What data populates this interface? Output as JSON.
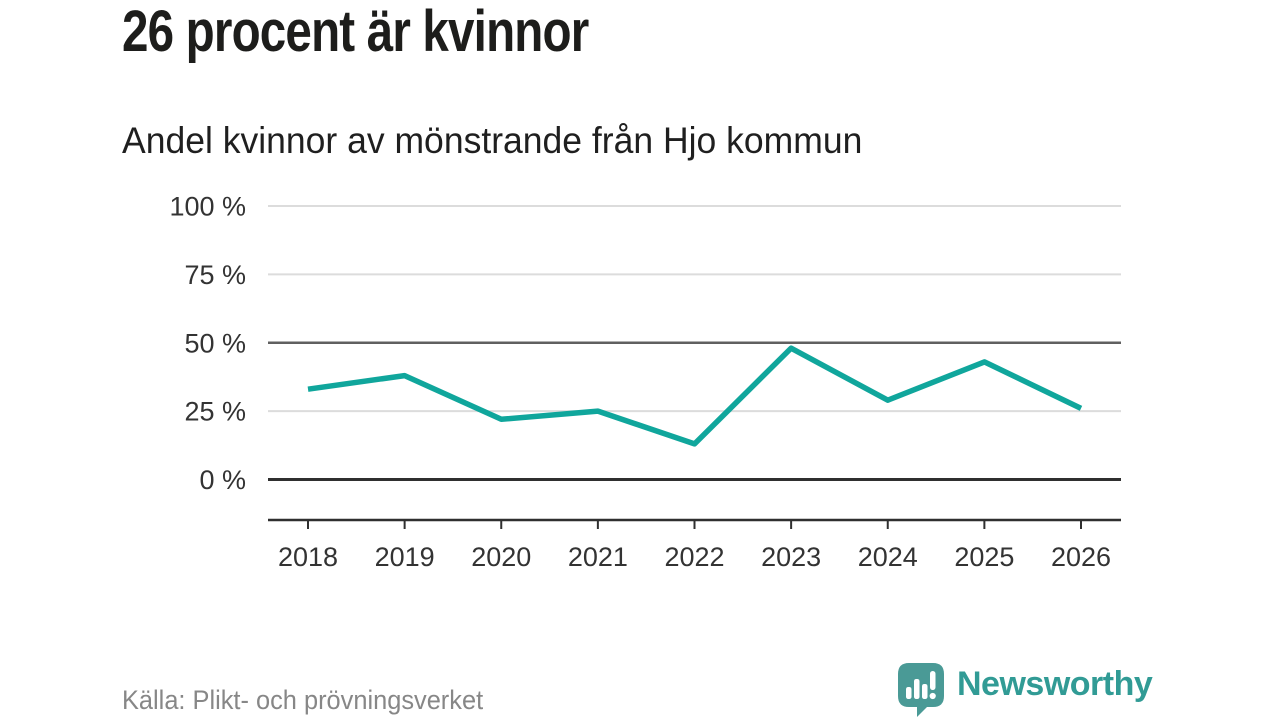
{
  "header": {
    "title": "26 procent är kvinnor",
    "subtitle": "Andel kvinnor av mönstrande från Hjo kommun"
  },
  "chart_data": {
    "type": "line",
    "title": "26 procent är kvinnor",
    "subtitle": "Andel kvinnor av mönstrande från Hjo kommun",
    "categories": [
      "2018",
      "2019",
      "2020",
      "2021",
      "2022",
      "2023",
      "2024",
      "2025",
      "2026"
    ],
    "series": [
      {
        "name": "Andel kvinnor av mönstrande",
        "color": "#10a69c",
        "values": [
          33,
          38,
          22,
          25,
          13,
          48,
          29,
          43,
          26
        ]
      }
    ],
    "unit": "%",
    "xlabel": "",
    "ylabel": "",
    "ylim": [
      0,
      100
    ],
    "yticks": [
      0,
      25,
      50,
      75,
      100
    ],
    "ytick_labels": [
      "0 %",
      "25 %",
      "50 %",
      "75 %",
      "100 %"
    ],
    "emphasized_gridline": 50,
    "baseline_gridline": 0,
    "grid": true,
    "legend_position": "none",
    "colors": {
      "grid_light": "#dcdcdc",
      "grid_emphasis": "#606060",
      "baseline": "#2f2f2f",
      "axis": "#2f2f2f",
      "tick_text": "#333333"
    }
  },
  "footer": {
    "source": "Källa: Plikt- och prövningsverket",
    "brand_name": "Newsworthy",
    "brand_text_color": "#319b95",
    "brand_icon": "speech-bubble-bar-chart-icon",
    "brand_icon_color": "#4a9a96"
  }
}
